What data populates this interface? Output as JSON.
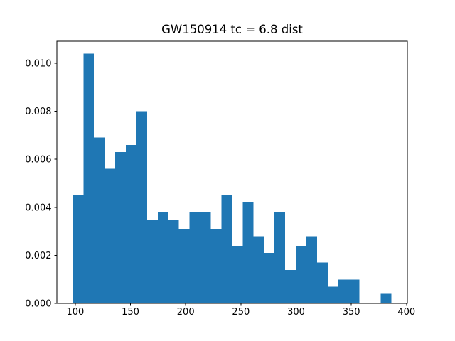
{
  "figure": {
    "background": "#ffffff"
  },
  "chart_data": {
    "type": "bar",
    "subtype": "histogram",
    "title": "GW150914 tc = 6.8 dist",
    "xlabel": "",
    "ylabel": "",
    "bar_color": "#1f77b4",
    "text_color": "#000000",
    "grid": false,
    "legend_position": "none",
    "bins": {
      "start": 97.7,
      "width": 9.62,
      "count": 30
    },
    "densities": [
      0.0045,
      0.0104,
      0.0069,
      0.0056,
      0.0063,
      0.0066,
      0.008,
      0.0035,
      0.0038,
      0.0035,
      0.0031,
      0.0038,
      0.0038,
      0.0031,
      0.0045,
      0.0024,
      0.0042,
      0.0028,
      0.0021,
      0.0038,
      0.0014,
      0.0024,
      0.0028,
      0.0017,
      0.0007,
      0.001,
      0.001,
      0.0,
      0.0,
      0.0004
    ],
    "x_ticks": [
      "100",
      "150",
      "200",
      "250",
      "300",
      "350",
      "400"
    ],
    "y_ticks": [
      "0.000",
      "0.002",
      "0.004",
      "0.006",
      "0.008",
      "0.010"
    ],
    "xlim": [
      83.3,
      400.8
    ],
    "ylim": [
      0,
      0.01091
    ]
  }
}
